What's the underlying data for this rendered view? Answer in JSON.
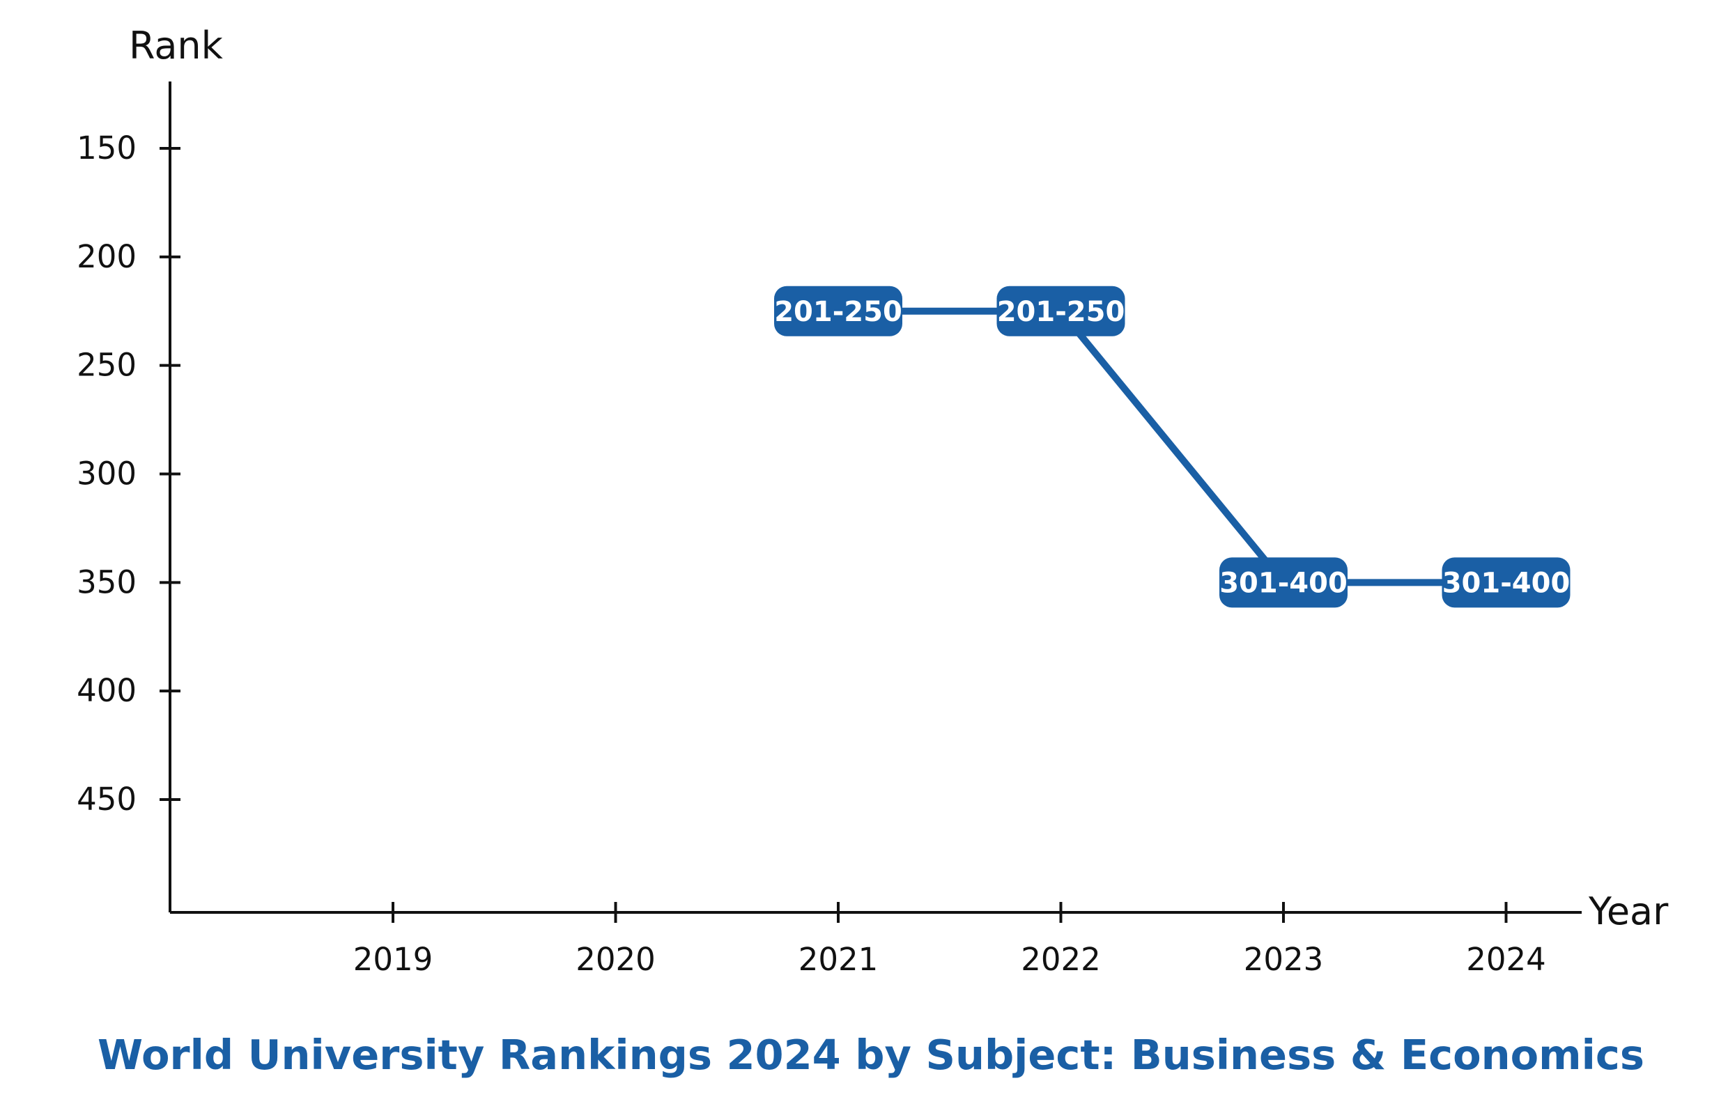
{
  "chart_data": {
    "type": "line",
    "title": "World University Rankings 2024 by Subject: Business & Economics",
    "xlabel": "Year",
    "ylabel": "Rank",
    "x_ticks": [
      "2019",
      "2020",
      "2021",
      "2022",
      "2023",
      "2024"
    ],
    "y_ticks": [
      150,
      200,
      250,
      300,
      350,
      400,
      450
    ],
    "ylim": [
      120,
      500
    ],
    "y_inverted": true,
    "grid": false,
    "colors": {
      "series": "#1a5fa5",
      "axis": "#111111",
      "title": "#1a5fa5"
    },
    "series": [
      {
        "points": [
          {
            "x": "2021",
            "y": 225,
            "label": "201-250"
          },
          {
            "x": "2022",
            "y": 225,
            "label": "201-250"
          },
          {
            "x": "2023",
            "y": 350,
            "label": "301-400"
          },
          {
            "x": "2024",
            "y": 350,
            "label": "301-400"
          }
        ]
      }
    ]
  }
}
